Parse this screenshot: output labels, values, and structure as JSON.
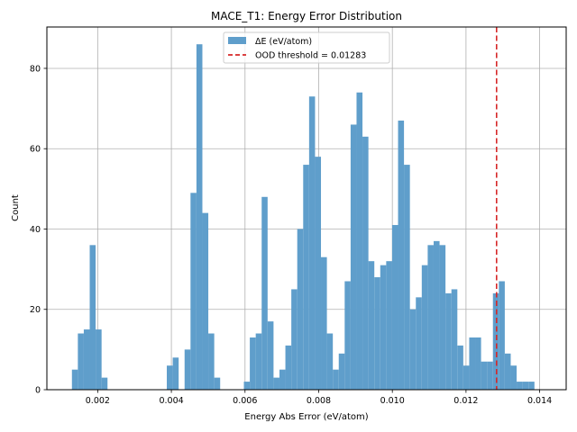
{
  "chart_data": {
    "type": "bar",
    "title": "MACE_T1: Energy Error Distribution",
    "xlabel": "Energy Abs Error (eV/atom)",
    "ylabel": "Count",
    "xlim": [
      0.00062,
      0.01472
    ],
    "ylim": [
      0,
      90.3
    ],
    "xticks": [
      0.002,
      0.004,
      0.006,
      0.008,
      0.01,
      0.012,
      0.014
    ],
    "xtick_labels": [
      "0.002",
      "0.004",
      "0.006",
      "0.008",
      "0.010",
      "0.012",
      "0.014"
    ],
    "yticks": [
      0,
      20,
      40,
      60,
      80
    ],
    "ytick_labels": [
      "0",
      "20",
      "40",
      "60",
      "80"
    ],
    "grid": true,
    "legend_position": "top-center",
    "bin_start": 0.0013,
    "bin_width": 0.000161,
    "series": [
      {
        "name": "ΔE (eV/atom)",
        "type": "histogram",
        "color": "#5f9ecb",
        "values": [
          5,
          14,
          15,
          36,
          15,
          3,
          0,
          0,
          0,
          0,
          0,
          0,
          0,
          0,
          0,
          0,
          6,
          8,
          0,
          10,
          49,
          86,
          44,
          14,
          3,
          0,
          0,
          0,
          0,
          2,
          13,
          14,
          48,
          17,
          3,
          5,
          11,
          25,
          40,
          56,
          73,
          58,
          33,
          14,
          5,
          9,
          27,
          66,
          74,
          63,
          32,
          28,
          31,
          32,
          41,
          67,
          56,
          20,
          23,
          31,
          36,
          37,
          36,
          24,
          25,
          11,
          6,
          13,
          13,
          7,
          7,
          24,
          27,
          9,
          6,
          2,
          2,
          2
        ]
      }
    ],
    "threshold": {
      "label": "OOD threshold = 0.01283",
      "value": 0.01283,
      "color": "#d62728"
    }
  }
}
